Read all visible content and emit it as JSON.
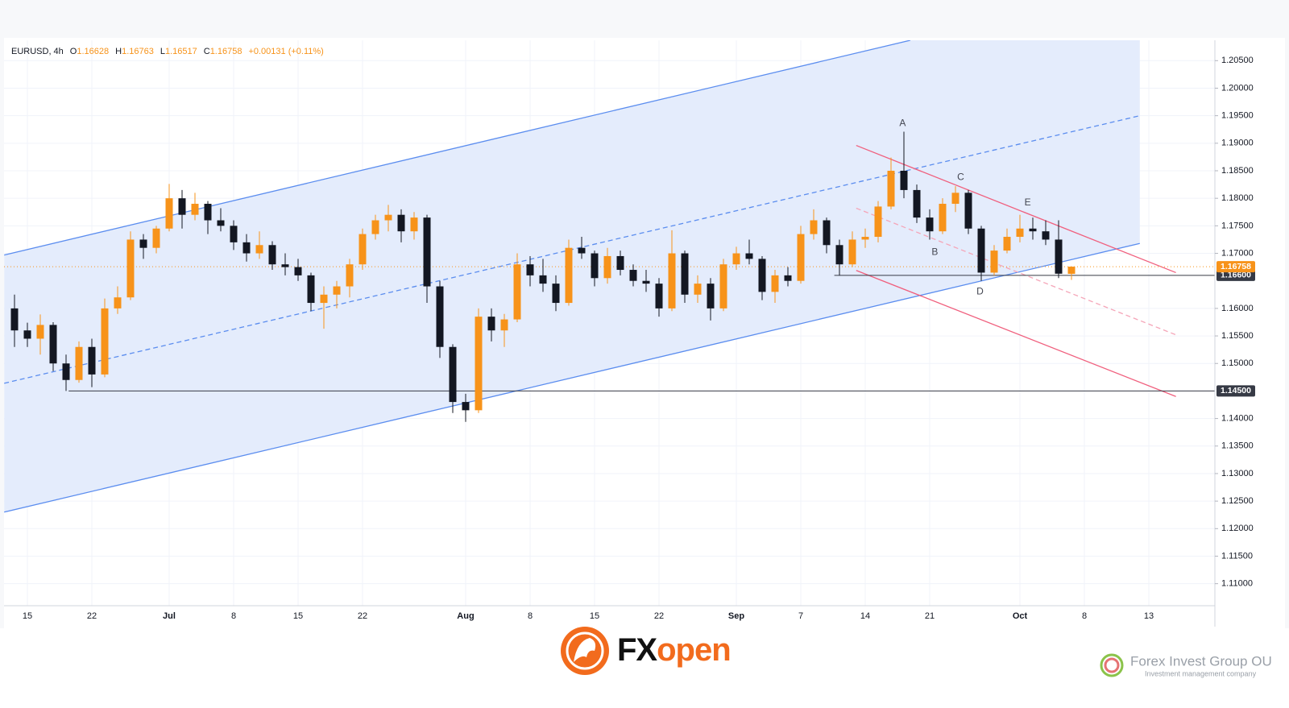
{
  "chart_data": {
    "type": "candlestick",
    "legend_header": {
      "symbol": "EURUSD, 4h",
      "labels": [
        "O",
        "H",
        "L",
        "C"
      ],
      "change": "+0.00131 (+0.11%)"
    },
    "x": [
      -1,
      0,
      1,
      2,
      3,
      4,
      5,
      6,
      7,
      8,
      9,
      10,
      11,
      12,
      13,
      14,
      15,
      16,
      17,
      18,
      19,
      20,
      21,
      22,
      23,
      24,
      25,
      26,
      27,
      28,
      29,
      30,
      31,
      32,
      33,
      34,
      35,
      36,
      37,
      38,
      39,
      40,
      41,
      42,
      43,
      44,
      45,
      46,
      47,
      48,
      49,
      50,
      51,
      52,
      53,
      54,
      55,
      56,
      57,
      58,
      59,
      60,
      61,
      62,
      63,
      64,
      65,
      66,
      67,
      68,
      69,
      70,
      71,
      72,
      73,
      74,
      75,
      76,
      77,
      78,
      79,
      80,
      81
    ],
    "open": [
      1.16,
      1.156,
      1.1545,
      1.157,
      1.15,
      1.147,
      1.153,
      1.148,
      1.16,
      1.162,
      1.1725,
      1.171,
      1.1745,
      1.18,
      1.177,
      1.179,
      1.176,
      1.175,
      1.172,
      1.17,
      1.1715,
      1.168,
      1.1675,
      1.166,
      1.161,
      1.1625,
      1.164,
      1.168,
      1.1735,
      1.176,
      1.177,
      1.174,
      1.1765,
      1.164,
      1.153,
      1.143,
      1.1415,
      1.1585,
      1.156,
      1.158,
      1.168,
      1.166,
      1.1645,
      1.161,
      1.171,
      1.17,
      1.1655,
      1.1695,
      1.167,
      1.165,
      1.1645,
      1.16,
      1.17,
      1.1625,
      1.1645,
      1.16,
      1.168,
      1.17,
      1.169,
      1.163,
      1.166,
      1.165,
      1.1735,
      1.176,
      1.1715,
      1.168,
      1.1725,
      1.173,
      1.1785,
      1.185,
      1.1815,
      1.1765,
      1.174,
      1.179,
      1.181,
      1.1745,
      1.1665,
      1.1705,
      1.173,
      1.1745,
      1.174,
      1.1725,
      1.16628
    ],
    "high": [
      1.1625,
      1.1574,
      1.1589,
      1.1575,
      1.1516,
      1.154,
      1.1545,
      1.1618,
      1.164,
      1.174,
      1.1735,
      1.175,
      1.1826,
      1.1815,
      1.181,
      1.1795,
      1.1782,
      1.176,
      1.1735,
      1.174,
      1.1722,
      1.17,
      1.169,
      1.1665,
      1.164,
      1.165,
      1.169,
      1.1745,
      1.177,
      1.1788,
      1.178,
      1.1775,
      1.177,
      1.165,
      1.1535,
      1.1445,
      1.16,
      1.16,
      1.159,
      1.17,
      1.1695,
      1.169,
      1.166,
      1.1725,
      1.173,
      1.1705,
      1.171,
      1.1705,
      1.168,
      1.167,
      1.1655,
      1.1742,
      1.1705,
      1.166,
      1.1655,
      1.169,
      1.1712,
      1.1725,
      1.1695,
      1.167,
      1.1675,
      1.175,
      1.178,
      1.1765,
      1.1725,
      1.174,
      1.1745,
      1.1795,
      1.1874,
      1.1921,
      1.1825,
      1.178,
      1.18,
      1.1822,
      1.1815,
      1.175,
      1.1715,
      1.1745,
      1.177,
      1.1765,
      1.176,
      1.176,
      1.16763
    ],
    "low": [
      1.153,
      1.153,
      1.1516,
      1.1486,
      1.145,
      1.1465,
      1.1457,
      1.1475,
      1.159,
      1.1615,
      1.169,
      1.17,
      1.174,
      1.1745,
      1.176,
      1.1735,
      1.174,
      1.1706,
      1.1685,
      1.169,
      1.167,
      1.166,
      1.165,
      1.1595,
      1.1563,
      1.16,
      1.162,
      1.167,
      1.1725,
      1.174,
      1.172,
      1.1725,
      1.161,
      1.151,
      1.141,
      1.1394,
      1.141,
      1.154,
      1.153,
      1.1575,
      1.164,
      1.163,
      1.1595,
      1.1605,
      1.169,
      1.164,
      1.1645,
      1.166,
      1.164,
      1.163,
      1.1585,
      1.1595,
      1.161,
      1.161,
      1.1578,
      1.1595,
      1.167,
      1.168,
      1.1615,
      1.161,
      1.164,
      1.1645,
      1.1725,
      1.17,
      1.166,
      1.1675,
      1.171,
      1.172,
      1.178,
      1.18,
      1.1755,
      1.1725,
      1.1735,
      1.1775,
      1.1735,
      1.165,
      1.166,
      1.17,
      1.172,
      1.1725,
      1.1715,
      1.1655,
      1.16517
    ],
    "close": [
      1.156,
      1.1545,
      1.157,
      1.15,
      1.147,
      1.153,
      1.148,
      1.16,
      1.162,
      1.1725,
      1.171,
      1.1745,
      1.18,
      1.177,
      1.179,
      1.176,
      1.175,
      1.172,
      1.17,
      1.1715,
      1.168,
      1.1675,
      1.166,
      1.161,
      1.1625,
      1.164,
      1.168,
      1.1735,
      1.176,
      1.177,
      1.174,
      1.1765,
      1.164,
      1.153,
      1.143,
      1.1415,
      1.1585,
      1.156,
      1.158,
      1.168,
      1.166,
      1.1645,
      1.161,
      1.171,
      1.17,
      1.1655,
      1.1695,
      1.167,
      1.165,
      1.1645,
      1.16,
      1.17,
      1.1625,
      1.1645,
      1.16,
      1.168,
      1.17,
      1.169,
      1.163,
      1.166,
      1.165,
      1.1735,
      1.176,
      1.1715,
      1.168,
      1.1725,
      1.173,
      1.1785,
      1.185,
      1.1815,
      1.1765,
      1.174,
      1.179,
      1.181,
      1.1745,
      1.1665,
      1.1705,
      1.173,
      1.1745,
      1.174,
      1.1725,
      1.1663,
      1.16758
    ],
    "up_color": "#f7931a",
    "down_color": "#131722",
    "xlim": [
      -1.8125,
      92.125
    ],
    "ylim": [
      1.106,
      1.2087
    ],
    "xticks": [
      {
        "value": 0,
        "label": "15"
      },
      {
        "value": 5,
        "label": "22"
      },
      {
        "value": 11,
        "label": "Jul"
      },
      {
        "value": 16,
        "label": "8"
      },
      {
        "value": 21,
        "label": "15"
      },
      {
        "value": 26,
        "label": "22"
      },
      {
        "value": 34,
        "label": "Aug"
      },
      {
        "value": 39,
        "label": "8"
      },
      {
        "value": 44,
        "label": "15"
      },
      {
        "value": 49,
        "label": "22"
      },
      {
        "value": 55,
        "label": "Sep"
      },
      {
        "value": 60,
        "label": "7"
      },
      {
        "value": 65,
        "label": "14"
      },
      {
        "value": 70,
        "label": "21"
      },
      {
        "value": 77,
        "label": "Oct"
      },
      {
        "value": 82,
        "label": "8"
      },
      {
        "value": 87,
        "label": "13"
      }
    ],
    "yticks": [
      {
        "value": 1.205,
        "label": "1.20500"
      },
      {
        "value": 1.2,
        "label": "1.20000"
      },
      {
        "value": 1.195,
        "label": "1.19500"
      },
      {
        "value": 1.19,
        "label": "1.19000"
      },
      {
        "value": 1.185,
        "label": "1.18500"
      },
      {
        "value": 1.18,
        "label": "1.18000"
      },
      {
        "value": 1.175,
        "label": "1.17500"
      },
      {
        "value": 1.17,
        "label": "1.17000"
      },
      {
        "value": 1.16,
        "label": "1.16000"
      },
      {
        "value": 1.155,
        "label": "1.15500"
      },
      {
        "value": 1.15,
        "label": "1.15000"
      },
      {
        "value": 1.14,
        "label": "1.14000"
      },
      {
        "value": 1.135,
        "label": "1.13500"
      },
      {
        "value": 1.13,
        "label": "1.13000"
      },
      {
        "value": 1.125,
        "label": "1.12500"
      },
      {
        "value": 1.12,
        "label": "1.12000"
      },
      {
        "value": 1.115,
        "label": "1.11500"
      },
      {
        "value": 1.11,
        "label": "1.11000"
      }
    ],
    "grid": true,
    "channel_fill": "#e4ecfc",
    "lines": [
      {
        "x1": -1.8,
        "y1": 1.1697,
        "x2": 68.5,
        "y2": 1.2087,
        "color": "#5b8def",
        "dash": false
      },
      {
        "x1": -1.8,
        "y1": 1.123,
        "x2": 86.3,
        "y2": 1.1718,
        "color": "#5b8def",
        "dash": false
      },
      {
        "x1": -1.8,
        "y1": 1.1464,
        "x2": 86.3,
        "y2": 1.195,
        "color": "#5b8def",
        "dash": true
      },
      {
        "x1": 64.3,
        "y1": 1.1896,
        "x2": 89.1,
        "y2": 1.1665,
        "color": "#f0607e",
        "dash": false
      },
      {
        "x1": 64.3,
        "y1": 1.1669,
        "x2": 89.1,
        "y2": 1.144,
        "color": "#f0607e",
        "dash": false
      },
      {
        "x1": 64.3,
        "y1": 1.1782,
        "x2": 89.1,
        "y2": 1.1552,
        "color": "#f5a5b8",
        "dash": true
      }
    ],
    "levels": [
      {
        "value": 1.166,
        "label": "1.16600",
        "x_start": 62.6,
        "color": "#363a45"
      },
      {
        "value": 1.145,
        "label": "1.14500",
        "x_start": 3.2,
        "color": "#363a45"
      }
    ],
    "annotations": [
      {
        "text": "A",
        "x": 67.9,
        "y": 1.1936
      },
      {
        "text": "B",
        "x": 70.4,
        "y": 1.1702
      },
      {
        "text": "C",
        "x": 72.4,
        "y": 1.1838
      },
      {
        "text": "D",
        "x": 73.9,
        "y": 1.163
      },
      {
        "text": "E",
        "x": 77.6,
        "y": 1.1792
      }
    ]
  },
  "footer": {
    "brand_fx": "FX",
    "brand_open": "open",
    "watermark_name": "Forex Invest Group OU",
    "watermark_tagline": "Investment management company"
  }
}
